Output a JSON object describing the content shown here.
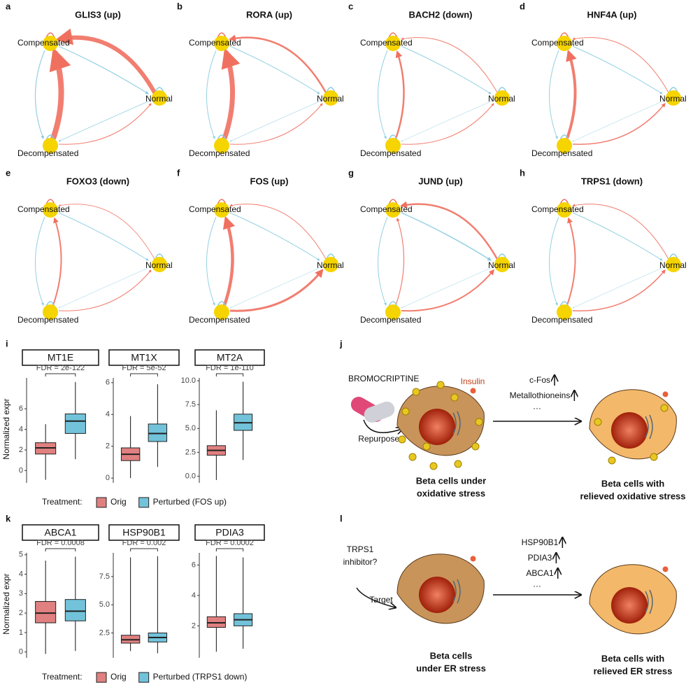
{
  "networks": {
    "nodes": [
      "Compensated",
      "Normal",
      "Decompensated"
    ],
    "panels": [
      {
        "letter": "a",
        "title": "GLIS3 (up)"
      },
      {
        "letter": "b",
        "title": "RORA (up)"
      },
      {
        "letter": "c",
        "title": "BACH2 (down)"
      },
      {
        "letter": "d",
        "title": "HNF4A (up)"
      },
      {
        "letter": "e",
        "title": "FOXO3 (down)"
      },
      {
        "letter": "f",
        "title": "FOS (up)"
      },
      {
        "letter": "g",
        "title": "JUND (up)"
      },
      {
        "letter": "h",
        "title": "TRPS1 (down)"
      }
    ]
  },
  "boxplots": [
    {
      "letter": "i",
      "y_label": "Normalized expr",
      "legend_title": "Treatment:",
      "groups": [
        "Orig",
        "Perturbed (FOS up)"
      ],
      "colors": [
        "#e08080",
        "#72c3da"
      ],
      "facets": [
        {
          "title": "MT1E",
          "fdr": "FDR = 2e-122",
          "ylim": [
            -1.2,
            9
          ],
          "yticks": [
            0,
            2,
            4,
            6
          ],
          "boxes": [
            {
              "min": -0.9,
              "q1": 1.6,
              "median": 2.2,
              "q3": 2.7,
              "max": 4.5
            },
            {
              "min": 1.1,
              "q1": 3.6,
              "median": 4.8,
              "q3": 5.5,
              "max": 8.6
            }
          ]
        },
        {
          "title": "MT1X",
          "fdr": "FDR = 5e-52",
          "ylim": [
            -0.3,
            6.3
          ],
          "yticks": [
            0,
            2,
            4,
            6
          ],
          "boxes": [
            {
              "min": 0,
              "q1": 1.1,
              "median": 1.5,
              "q3": 1.9,
              "max": 3.9
            },
            {
              "min": 0.7,
              "q1": 2.3,
              "median": 2.8,
              "q3": 3.4,
              "max": 5.9
            }
          ]
        },
        {
          "title": "MT2A",
          "fdr": "FDR = 1e-110",
          "ylim": [
            -0.7,
            10.3
          ],
          "yticks": [
            {
              "value": 0,
              "label": "0.0"
            },
            {
              "value": 2.5,
              "label": "2.5"
            },
            {
              "value": 5,
              "label": "5.0"
            },
            {
              "value": 7.5,
              "label": "7.5"
            },
            {
              "value": 10,
              "label": "10.0"
            }
          ],
          "boxes": [
            {
              "min": -0.4,
              "q1": 2.2,
              "median": 2.7,
              "q3": 3.2,
              "max": 6.9
            },
            {
              "min": 1.7,
              "q1": 4.8,
              "median": 5.6,
              "q3": 6.5,
              "max": 9.9
            }
          ]
        }
      ]
    },
    {
      "letter": "k",
      "y_label": "Normalized expr",
      "legend_title": "Treatment:",
      "groups": [
        "Orig",
        "Perturbed (TRPS1 down)"
      ],
      "colors": [
        "#e08080",
        "#72c3da"
      ],
      "facets": [
        {
          "title": "ABCA1",
          "fdr": "FDR = 0.0008",
          "ylim": [
            -0.3,
            5.1
          ],
          "yticks": [
            0,
            1,
            2,
            3,
            4,
            5
          ],
          "boxes": [
            {
              "min": -0.1,
              "q1": 1.5,
              "median": 2.0,
              "q3": 2.6,
              "max": 4.7
            },
            {
              "min": 0.05,
              "q1": 1.6,
              "median": 2.1,
              "q3": 2.7,
              "max": 4.9
            }
          ]
        },
        {
          "title": "HSP90B1",
          "fdr": "FDR = 0.002",
          "ylim": [
            0.3,
            9.6
          ],
          "yticks": [
            2.5,
            {
              "value": 5,
              "label": "5.0"
            },
            7.5
          ],
          "boxes": [
            {
              "min": 0.9,
              "q1": 1.6,
              "median": 1.9,
              "q3": 2.3,
              "max": 9.2
            },
            {
              "min": 0.7,
              "q1": 1.7,
              "median": 2.1,
              "q3": 2.5,
              "max": 9.3
            }
          ]
        },
        {
          "title": "PDIA3",
          "fdr": "FDR = 0.0002",
          "ylim": [
            -0.1,
            6.8
          ],
          "yticks": [
            2,
            4,
            6
          ],
          "boxes": [
            {
              "min": 0.3,
              "q1": 1.9,
              "median": 2.2,
              "q3": 2.6,
              "max": 6.6
            },
            {
              "min": 0.5,
              "q1": 2.0,
              "median": 2.4,
              "q3": 2.8,
              "max": 6.5
            }
          ]
        }
      ]
    }
  ],
  "diagrams": [
    {
      "letter": "j",
      "drug": [
        "BROMOCRIPTINE"
      ],
      "insulin": "Insulin",
      "action": "Repurposed",
      "genes": [
        "c-Fos",
        "Metallothioneins"
      ],
      "more": "···",
      "before": [
        "Beta cells under",
        "oxidative stress"
      ],
      "after": [
        "Beta cells with",
        "relieved oxidative stress"
      ]
    },
    {
      "letter": "l",
      "drug": [
        "TRPS1",
        "inhibitor?"
      ],
      "action": "Target",
      "genes": [
        "HSP90B1",
        "PDIA3",
        "ABCA1"
      ],
      "more": "···",
      "before": [
        "Beta cells",
        "under ER stress"
      ],
      "after": [
        "Beta cells with",
        "relieved ER stress"
      ]
    }
  ]
}
